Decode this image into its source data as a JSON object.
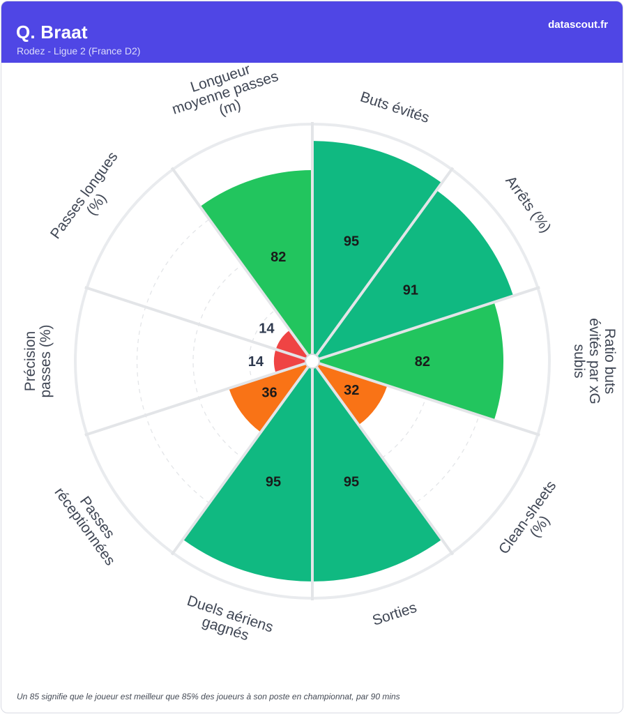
{
  "header": {
    "player_name": "Q. Braat",
    "subtitle": "Rodez - Ligue 2 (France D2)",
    "brand": "datascout.fr"
  },
  "footnote": "Un 85 signifie que le joueur est meilleur que 85% des joueurs à son poste en championnat, par 90 mins",
  "colors": {
    "header_bg": "#4f46e5",
    "elite": "#10b981",
    "good": "#22c55e",
    "average": "#f97316",
    "poor": "#ef4444"
  },
  "chart_data": {
    "type": "polar_bar",
    "title": "",
    "scale": [
      0,
      100
    ],
    "grid": true,
    "categories": [
      {
        "label": [
          "Buts évités"
        ],
        "value": 95,
        "color": "#10b981"
      },
      {
        "label": [
          "Arrêts (%)"
        ],
        "value": 91,
        "color": "#10b981"
      },
      {
        "label": [
          "Ratio buts",
          "évités par xG",
          "subis"
        ],
        "value": 82,
        "color": "#22c55e"
      },
      {
        "label": [
          "Clean-sheets",
          "(%)"
        ],
        "value": 32,
        "color": "#f97316"
      },
      {
        "label": [
          "Sorties"
        ],
        "value": 95,
        "color": "#10b981"
      },
      {
        "label": [
          "Duels aériens",
          "gagnés"
        ],
        "value": 95,
        "color": "#10b981"
      },
      {
        "label": [
          "Passes",
          "réceptionnées"
        ],
        "value": 36,
        "color": "#f97316"
      },
      {
        "label": [
          "Précision",
          "passes (%)"
        ],
        "value": 14,
        "color": "#ef4444"
      },
      {
        "label": [
          "Passes longues",
          "(%)"
        ],
        "value": 14,
        "color": "#ef4444"
      },
      {
        "label": [
          "Longueur",
          "moyenne passes",
          "(m)"
        ],
        "value": 82,
        "color": "#22c55e"
      }
    ]
  }
}
